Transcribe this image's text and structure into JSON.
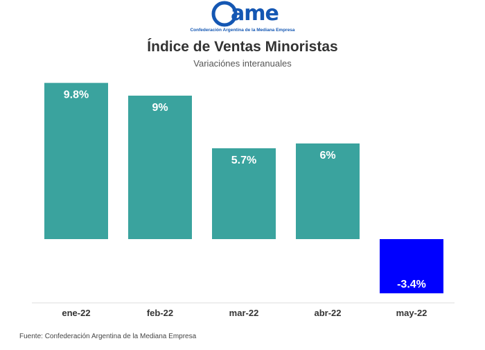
{
  "logo": {
    "text": "CAME",
    "subtitle": "Confederación Argentina de la Mediana Empresa"
  },
  "header": {
    "title": "Índice de Ventas Minoristas",
    "subtitle": "Variaciónes interanuales"
  },
  "source": "Fuente: Confederación Argentina de la Mediana Empresa",
  "colors": {
    "positive": "#3aa39e",
    "negative": "#0000ff",
    "logo": "#1457b3"
  },
  "chart_data": {
    "type": "bar",
    "title": "Índice de Ventas Minoristas",
    "subtitle": "Variaciónes interanuales",
    "categories": [
      "ene-22",
      "feb-22",
      "mar-22",
      "abr-22",
      "may-22"
    ],
    "values": [
      9.8,
      9,
      5.7,
      6,
      -3.4
    ],
    "labels": [
      "9.8%",
      "9%",
      "5.7%",
      "6%",
      "-3.4%"
    ],
    "ylim": [
      -4,
      10
    ],
    "grid": false,
    "legend": "none"
  }
}
